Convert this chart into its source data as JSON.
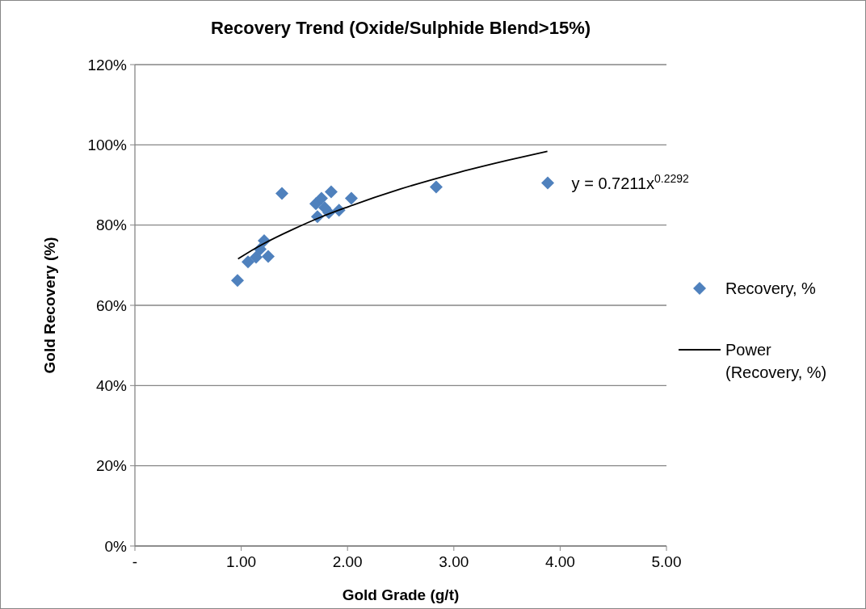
{
  "chart_data": {
    "type": "scatter",
    "title": "Recovery Trend (Oxide/Sulphide Blend>15%)",
    "xlabel": "Gold Grade (g/t)",
    "ylabel": "Gold Recovery (%)",
    "series": [
      {
        "name": "Recovery, %",
        "marker": "diamond",
        "color": "#4f81bd",
        "x": [
          0.965,
          1.064,
          1.14,
          1.254,
          1.216,
          1.178,
          1.383,
          1.717,
          1.702,
          1.755,
          1.846,
          1.824,
          1.92,
          2.036,
          1.786,
          2.834,
          3.883
        ],
        "values": [
          66.2,
          70.8,
          72.0,
          72.2,
          76.1,
          74.0,
          87.9,
          82.1,
          85.3,
          86.7,
          88.3,
          83.1,
          83.7,
          86.7,
          84.3,
          89.5,
          90.5
        ]
      },
      {
        "name": "Power (Recovery, %)",
        "type": "line",
        "marker": "none",
        "line_style": "solid",
        "color": "#000000",
        "x": [
          0.97,
          1.0,
          1.2,
          1.5,
          1.75,
          2.0,
          2.5,
          3.0,
          3.5,
          3.88
        ],
        "values": [
          71.6,
          72.1,
          75.2,
          79.1,
          82.0,
          84.5,
          89.0,
          92.8,
          96.1,
          98.4
        ]
      }
    ],
    "annotations": [
      {
        "text": "y = 0.7211x$^{0.2292}$",
        "x": 3.88,
        "y": 90.5
      }
    ],
    "xlim": [
      0,
      5
    ],
    "xticks": [
      {
        "value": 0,
        "label": "-"
      },
      {
        "value": 1,
        "label": "1.00"
      },
      {
        "value": 2,
        "label": "2.00"
      },
      {
        "value": 3,
        "label": "3.00"
      },
      {
        "value": 4,
        "label": "4.00"
      },
      {
        "value": 5,
        "label": "5.00"
      }
    ],
    "ylim": [
      0,
      120
    ],
    "yticks": [
      {
        "value": 0,
        "label": "0%"
      },
      {
        "value": 20,
        "label": "20%"
      },
      {
        "value": 40,
        "label": "40%"
      },
      {
        "value": 60,
        "label": "60%"
      },
      {
        "value": 80,
        "label": "80%"
      },
      {
        "value": 100,
        "label": "100%"
      },
      {
        "value": 120,
        "label": "120%"
      }
    ],
    "grid": "y",
    "legend": "right"
  }
}
